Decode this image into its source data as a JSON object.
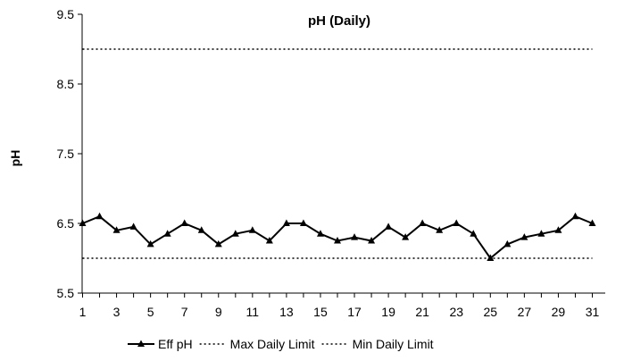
{
  "chart_data": {
    "type": "line",
    "title": "pH (Daily)",
    "xlabel": "",
    "ylabel": "pH",
    "ylim": [
      5.5,
      9.5
    ],
    "xlim": [
      1,
      31
    ],
    "yticks": [
      "9.5",
      "8.5",
      "7.5",
      "6.5",
      "5.5"
    ],
    "ytick_values": [
      9.5,
      8.5,
      7.5,
      6.5,
      5.5
    ],
    "xticks": [
      "1",
      "3",
      "5",
      "7",
      "9",
      "11",
      "13",
      "15",
      "17",
      "19",
      "21",
      "23",
      "25",
      "27",
      "29",
      "31"
    ],
    "xtick_values": [
      1,
      3,
      5,
      7,
      9,
      11,
      13,
      15,
      17,
      19,
      21,
      23,
      25,
      27,
      29,
      31
    ],
    "grid": false,
    "legend_position": "bottom",
    "x": [
      1,
      2,
      3,
      4,
      5,
      6,
      7,
      8,
      9,
      10,
      11,
      12,
      13,
      14,
      15,
      16,
      17,
      18,
      19,
      20,
      21,
      22,
      23,
      24,
      25,
      26,
      27,
      28,
      29,
      30,
      31
    ],
    "series": [
      {
        "name": "Eff pH",
        "style": "solid-triangle-markers",
        "color": "#000000",
        "values": [
          6.5,
          6.6,
          6.4,
          6.45,
          6.2,
          6.35,
          6.5,
          6.4,
          6.2,
          6.35,
          6.4,
          6.25,
          6.5,
          6.5,
          6.35,
          6.25,
          6.3,
          6.25,
          6.45,
          6.3,
          6.5,
          6.4,
          6.5,
          6.35,
          6.0,
          6.2,
          6.3,
          6.35,
          6.4,
          6.6,
          6.5
        ]
      },
      {
        "name": "Max Daily Limit",
        "style": "dotted",
        "color": "#000000",
        "values": [
          9.0,
          9.0,
          9.0,
          9.0,
          9.0,
          9.0,
          9.0,
          9.0,
          9.0,
          9.0,
          9.0,
          9.0,
          9.0,
          9.0,
          9.0,
          9.0,
          9.0,
          9.0,
          9.0,
          9.0,
          9.0,
          9.0,
          9.0,
          9.0,
          9.0,
          9.0,
          9.0,
          9.0,
          9.0,
          9.0,
          9.0
        ]
      },
      {
        "name": "Min Daily Limit",
        "style": "dotted",
        "color": "#000000",
        "values": [
          6.0,
          6.0,
          6.0,
          6.0,
          6.0,
          6.0,
          6.0,
          6.0,
          6.0,
          6.0,
          6.0,
          6.0,
          6.0,
          6.0,
          6.0,
          6.0,
          6.0,
          6.0,
          6.0,
          6.0,
          6.0,
          6.0,
          6.0,
          6.0,
          6.0,
          6.0,
          6.0,
          6.0,
          6.0,
          6.0,
          6.0
        ]
      }
    ]
  }
}
